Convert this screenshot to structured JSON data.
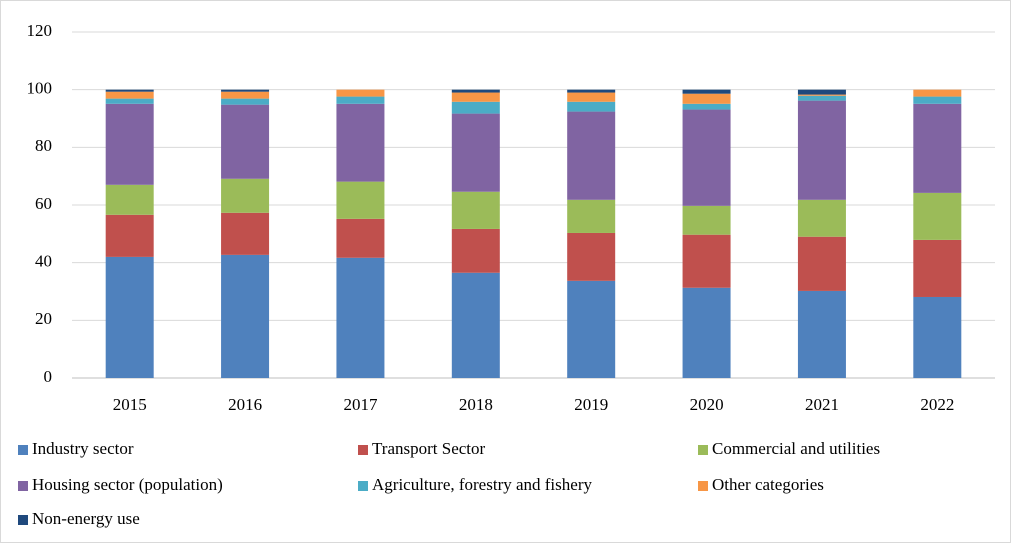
{
  "chart_data": {
    "type": "stacked_bar",
    "categories": [
      "2015",
      "2016",
      "2017",
      "2018",
      "2019",
      "2020",
      "2021",
      "2022"
    ],
    "series": [
      {
        "name": "Industry sector",
        "color": "#4f81bd",
        "values": [
          42.0,
          42.7,
          41.7,
          36.5,
          33.7,
          31.3,
          30.2,
          28.1
        ]
      },
      {
        "name": "Transport Sector",
        "color": "#c0504d",
        "values": [
          14.6,
          14.6,
          13.5,
          15.2,
          16.6,
          18.4,
          18.8,
          19.8
        ]
      },
      {
        "name": "Commercial and utilities",
        "color": "#9bbb59",
        "values": [
          10.4,
          11.8,
          12.9,
          12.9,
          11.5,
          10.0,
          12.8,
          16.3
        ]
      },
      {
        "name": "Housing sector (population)",
        "color": "#8064a2",
        "values": [
          28.1,
          25.7,
          27.0,
          27.1,
          30.6,
          33.4,
          34.4,
          30.9
        ]
      },
      {
        "name": "Agriculture, forestry and fishery",
        "color": "#4bacc6",
        "values": [
          1.8,
          2.1,
          2.5,
          4.1,
          3.4,
          2.0,
          1.7,
          2.5
        ]
      },
      {
        "name": "Other categories",
        "color": "#f79646",
        "values": [
          2.4,
          2.4,
          2.4,
          3.2,
          3.2,
          3.5,
          0.4,
          2.4
        ]
      },
      {
        "name": "Non-energy use",
        "color": "#1f497d",
        "values": [
          0.7,
          0.7,
          0,
          1.0,
          1.0,
          1.4,
          1.7,
          0
        ]
      }
    ],
    "ylim": [
      0,
      120
    ],
    "yticks": [
      0,
      20,
      40,
      60,
      80,
      100,
      120
    ],
    "grid": true,
    "legend": "bottom"
  }
}
